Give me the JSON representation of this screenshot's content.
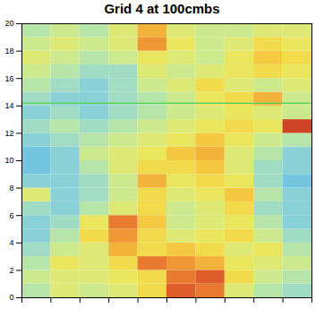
{
  "chart_data": {
    "type": "heatmap",
    "title": "Grid 4 at 100cmbs",
    "xlim": [
      0,
      20
    ],
    "ylim": [
      0,
      20
    ],
    "yticks": [
      0,
      2,
      4,
      6,
      8,
      10,
      12,
      14,
      16,
      18,
      20
    ],
    "tick_labels": "y",
    "x_bins": [
      0,
      2,
      4,
      6,
      8,
      10,
      12,
      14,
      16,
      18,
      20
    ],
    "y_bins": [
      0,
      1,
      2,
      3,
      4,
      5,
      6,
      7,
      8,
      9,
      10,
      11,
      12,
      13,
      14,
      15,
      16,
      17,
      18,
      19,
      20
    ],
    "zlim": [
      0,
      1
    ],
    "reference_line": {
      "y": 14.2,
      "color": "#5fd35f"
    },
    "cells": [
      [
        0.4,
        0.5,
        0.45,
        0.5,
        0.6,
        0.85,
        0.8,
        0.5,
        0.4,
        0.35
      ],
      [
        0.45,
        0.5,
        0.5,
        0.55,
        0.6,
        0.8,
        0.85,
        0.6,
        0.45,
        0.4
      ],
      [
        0.4,
        0.55,
        0.5,
        0.6,
        0.8,
        0.75,
        0.7,
        0.55,
        0.5,
        0.45
      ],
      [
        0.35,
        0.45,
        0.5,
        0.7,
        0.6,
        0.65,
        0.6,
        0.5,
        0.55,
        0.4
      ],
      [
        0.3,
        0.4,
        0.6,
        0.75,
        0.6,
        0.5,
        0.55,
        0.6,
        0.45,
        0.35
      ],
      [
        0.3,
        0.35,
        0.55,
        0.8,
        0.65,
        0.45,
        0.5,
        0.55,
        0.4,
        0.3
      ],
      [
        0.35,
        0.3,
        0.4,
        0.5,
        0.6,
        0.45,
        0.5,
        0.6,
        0.35,
        0.3
      ],
      [
        0.5,
        0.3,
        0.35,
        0.45,
        0.6,
        0.5,
        0.55,
        0.65,
        0.4,
        0.3
      ],
      [
        0.3,
        0.3,
        0.35,
        0.45,
        0.7,
        0.55,
        0.6,
        0.55,
        0.35,
        0.25
      ],
      [
        0.25,
        0.3,
        0.4,
        0.5,
        0.6,
        0.6,
        0.65,
        0.5,
        0.35,
        0.3
      ],
      [
        0.25,
        0.3,
        0.45,
        0.5,
        0.55,
        0.65,
        0.7,
        0.5,
        0.4,
        0.3
      ],
      [
        0.3,
        0.35,
        0.4,
        0.45,
        0.5,
        0.55,
        0.65,
        0.55,
        0.45,
        0.4
      ],
      [
        0.35,
        0.4,
        0.35,
        0.4,
        0.45,
        0.5,
        0.55,
        0.6,
        0.55,
        0.9
      ],
      [
        0.3,
        0.35,
        0.3,
        0.35,
        0.4,
        0.45,
        0.5,
        0.55,
        0.5,
        0.45
      ],
      [
        0.35,
        0.3,
        0.3,
        0.35,
        0.4,
        0.45,
        0.55,
        0.6,
        0.7,
        0.45
      ],
      [
        0.4,
        0.35,
        0.3,
        0.35,
        0.45,
        0.5,
        0.6,
        0.5,
        0.45,
        0.5
      ],
      [
        0.45,
        0.4,
        0.35,
        0.35,
        0.5,
        0.45,
        0.5,
        0.55,
        0.6,
        0.55
      ],
      [
        0.5,
        0.45,
        0.4,
        0.45,
        0.55,
        0.5,
        0.45,
        0.55,
        0.65,
        0.6
      ],
      [
        0.45,
        0.5,
        0.45,
        0.5,
        0.75,
        0.55,
        0.45,
        0.5,
        0.6,
        0.55
      ],
      [
        0.4,
        0.45,
        0.4,
        0.5,
        0.7,
        0.5,
        0.45,
        0.45,
        0.5,
        0.5
      ]
    ]
  }
}
